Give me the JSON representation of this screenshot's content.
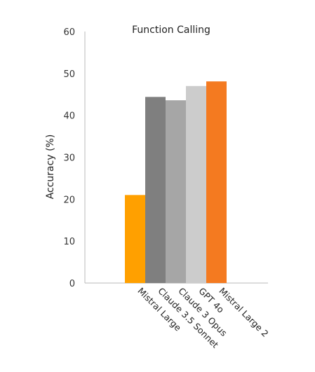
{
  "chart_data": {
    "type": "bar",
    "title": "Function Calling",
    "xlabel": "",
    "ylabel": "Accuracy (%)",
    "ylim": [
      0,
      60
    ],
    "yticks": [
      0,
      10,
      20,
      30,
      40,
      50,
      60
    ],
    "grid": false,
    "legend": "none",
    "categories": [
      "Mistral Large",
      "Claude 3.5 Sonnet",
      "Claude 3 Opus",
      "GPT 4o",
      "Mistral Large 2"
    ],
    "values": [
      21.0,
      44.4,
      43.6,
      47.0,
      48.1
    ],
    "colors": [
      "#ffa000",
      "#7f7f7f",
      "#a6a6a6",
      "#cccccc",
      "#f47a20"
    ]
  }
}
